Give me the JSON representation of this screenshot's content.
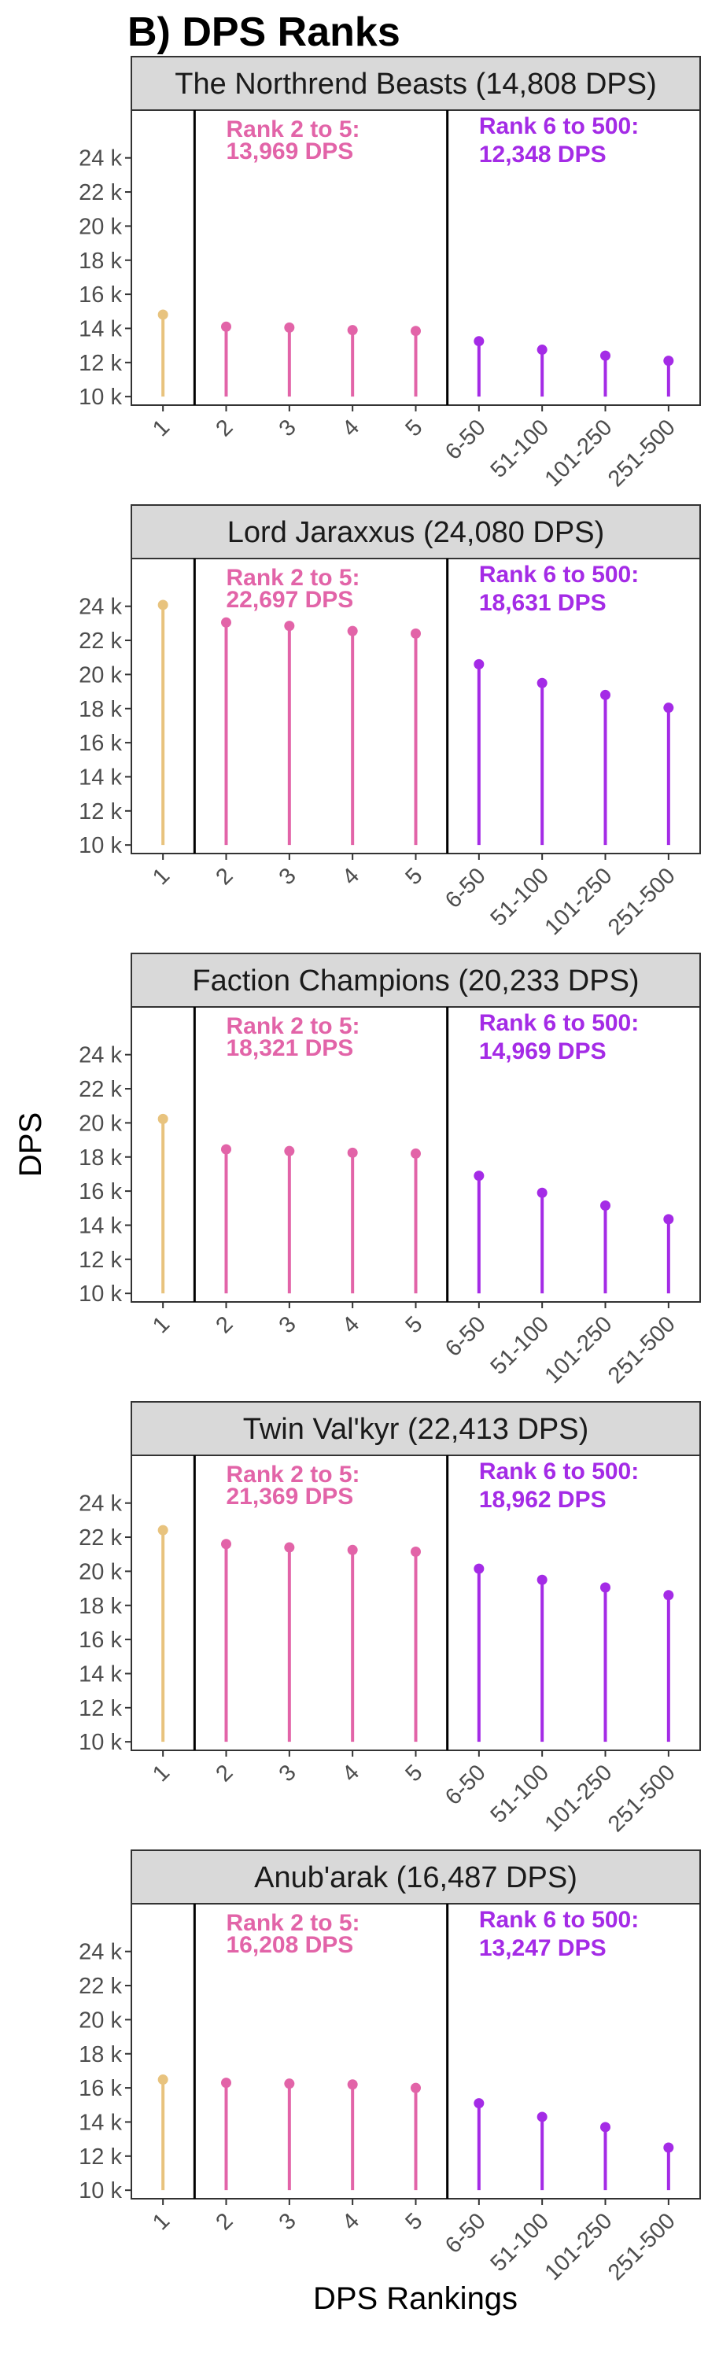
{
  "title": "B) DPS Ranks",
  "colors": {
    "rank1": "#e8c37e",
    "rank2to5": "#e264a8",
    "rank6to500": "#a42be6"
  },
  "chart_data": {
    "type": "lollipop",
    "xlabel": "DPS Rankings",
    "ylabel": "DPS",
    "ylim": [
      9500,
      26800
    ],
    "y_ticks": [
      10000,
      12000,
      14000,
      16000,
      18000,
      20000,
      22000,
      24000
    ],
    "y_tick_labels": [
      "10 k",
      "12 k",
      "14 k",
      "16 k",
      "18 k",
      "20 k",
      "22 k",
      "24 k"
    ],
    "baseline": 10000,
    "categories": [
      "1",
      "2",
      "3",
      "4",
      "5",
      "6-50",
      "51-100",
      "101-250",
      "251-500"
    ],
    "category_groups": [
      "rank1",
      "rank2to5",
      "rank2to5",
      "rank2to5",
      "rank2to5",
      "rank6to500",
      "rank6to500",
      "rank6to500",
      "rank6to500"
    ],
    "group_dividers_after": [
      1,
      5
    ],
    "grid": false,
    "panels": [
      {
        "strip_label": "The Northrend Beasts (14,808 DPS)",
        "values": [
          14808,
          14100,
          14050,
          13900,
          13850,
          13250,
          12750,
          12400,
          12100
        ],
        "annotation_mid_title": "Rank 2 to 5:",
        "annotation_mid_value": "13,969 DPS",
        "annotation_right_title": "Rank 6 to 500:",
        "annotation_right_value": "12,348 DPS"
      },
      {
        "strip_label": "Lord Jaraxxus (24,080 DPS)",
        "values": [
          24080,
          23050,
          22850,
          22550,
          22400,
          20600,
          19500,
          18800,
          18050
        ],
        "annotation_mid_title": "Rank 2 to 5:",
        "annotation_mid_value": "22,697 DPS",
        "annotation_right_title": "Rank 6 to 500:",
        "annotation_right_value": "18,631 DPS"
      },
      {
        "strip_label": "Faction Champions (20,233 DPS)",
        "values": [
          20233,
          18450,
          18350,
          18250,
          18200,
          16900,
          15900,
          15150,
          14350
        ],
        "annotation_mid_title": "Rank 2 to 5:",
        "annotation_mid_value": "18,321 DPS",
        "annotation_right_title": "Rank 6 to 500:",
        "annotation_right_value": "14,969 DPS"
      },
      {
        "strip_label": "Twin Val'kyr (22,413 DPS)",
        "values": [
          22413,
          21600,
          21400,
          21250,
          21150,
          20150,
          19500,
          19050,
          18600
        ],
        "annotation_mid_title": "Rank 2 to 5:",
        "annotation_mid_value": "21,369 DPS",
        "annotation_right_title": "Rank 6 to 500:",
        "annotation_right_value": "18,962 DPS"
      },
      {
        "strip_label": "Anub'arak (16,487 DPS)",
        "values": [
          16487,
          16300,
          16250,
          16200,
          16000,
          15100,
          14300,
          13700,
          12500
        ],
        "annotation_mid_title": "Rank 2 to 5:",
        "annotation_mid_value": "16,208 DPS",
        "annotation_right_title": "Rank 6 to 500:",
        "annotation_right_value": "13,247 DPS"
      }
    ]
  }
}
